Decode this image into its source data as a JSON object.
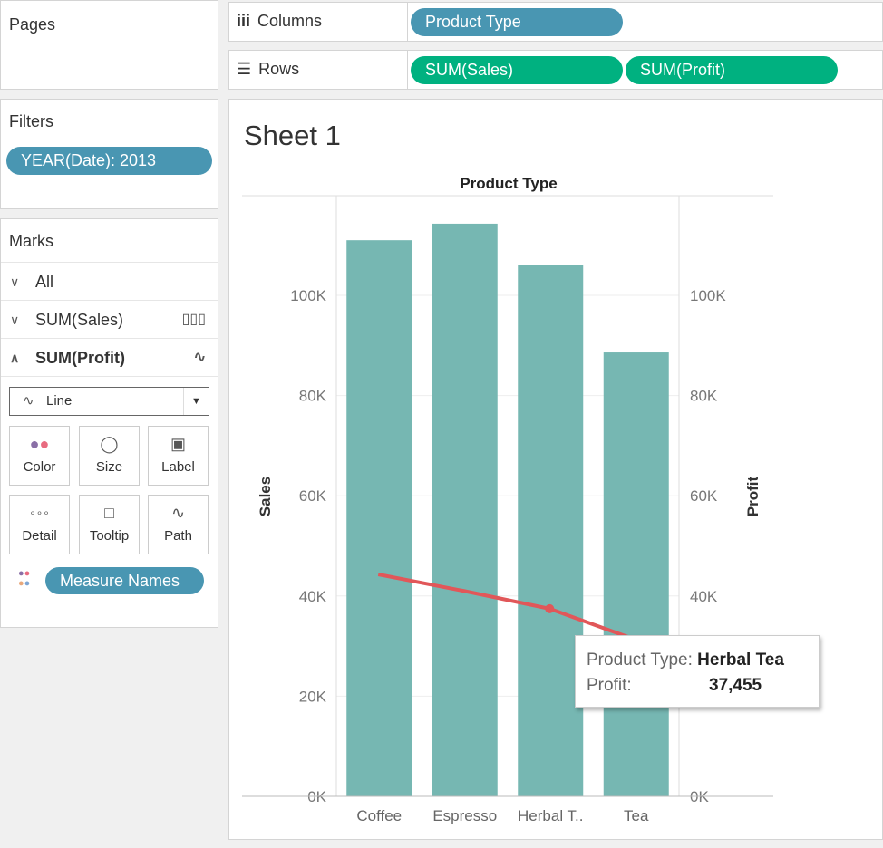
{
  "pages": {
    "title": "Pages"
  },
  "filters": {
    "title": "Filters",
    "pill": "YEAR(Date): 2013"
  },
  "marks": {
    "title": "Marks",
    "all": "All",
    "sales": "SUM(Sales)",
    "profit": "SUM(Profit)",
    "mark_type": "Line",
    "cards": [
      {
        "label": "Color",
        "icon": "color-icon"
      },
      {
        "label": "Size",
        "icon": "size-icon"
      },
      {
        "label": "Label",
        "icon": "label-icon"
      },
      {
        "label": "Detail",
        "icon": "detail-icon"
      },
      {
        "label": "Tooltip",
        "icon": "tooltip-icon"
      },
      {
        "label": "Path",
        "icon": "path-icon"
      }
    ],
    "color_pill": "Measure Names"
  },
  "shelves": {
    "columns_label": "Columns",
    "rows_label": "Rows",
    "columns": [
      "Product Type"
    ],
    "rows": [
      "SUM(Sales)",
      "SUM(Profit)"
    ]
  },
  "sheet": {
    "title": "Sheet 1"
  },
  "tooltip": {
    "type_label": "Product Type:",
    "type_value": "Herbal Tea",
    "profit_label": "Profit:",
    "profit_value": "37,455"
  },
  "chart_data": {
    "type": "bar+line",
    "header": "Product Type",
    "categories": [
      "Coffee",
      "Espresso",
      "Herbal T..",
      "Tea"
    ],
    "series": [
      {
        "name": "Sales",
        "type": "bar",
        "axis": "left",
        "values": [
          111000,
          114300,
          106100,
          88600
        ],
        "color": "#76b7b2"
      },
      {
        "name": "Profit",
        "type": "line",
        "axis": "right",
        "values": [
          44300,
          41000,
          37455,
          31300
        ],
        "color": "#e15759"
      }
    ],
    "ylabel_left": "Sales",
    "ylabel_right": "Profit",
    "ylim": [
      0,
      120000
    ],
    "yticks": [
      "0K",
      "20K",
      "40K",
      "60K",
      "80K",
      "100K"
    ],
    "grid": true
  }
}
